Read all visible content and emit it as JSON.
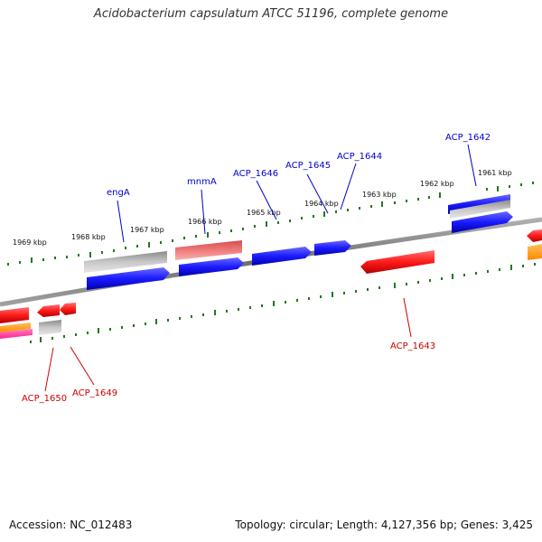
{
  "title": "Acidobacterium capsulatum ATCC 51196, complete genome",
  "footer": {
    "accession": "Accession: NC_012483",
    "summary": "Topology: circular; Length: 4,127,356 bp; Genes: 3,425"
  },
  "colors": {
    "backbone": "#8a8a8a",
    "ticks": "#1f7a1f",
    "label_forward": "#0000cc",
    "label_reverse": "#cc0000",
    "gene_blue": "#1a1aff",
    "gene_red": "#ff1a1a",
    "gene_pink": "#f28080",
    "gene_gray": "#b8b8b8",
    "gene_orange": "#ff9900",
    "gene_magenta": "#ff3399"
  },
  "kbp_labels": [
    "1969 kbp",
    "1968 kbp",
    "1967 kbp",
    "1966 kbp",
    "1965 kbp",
    "1964 kbp",
    "1963 kbp",
    "1962 kbp",
    "1961 kbp"
  ],
  "gene_labels": [
    {
      "name": "engA",
      "strand": "forward"
    },
    {
      "name": "mnmA",
      "strand": "forward"
    },
    {
      "name": "ACP_1646",
      "strand": "forward"
    },
    {
      "name": "ACP_1645",
      "strand": "forward"
    },
    {
      "name": "ACP_1644",
      "strand": "forward"
    },
    {
      "name": "ACP_1642",
      "strand": "forward"
    },
    {
      "name": "ACP_1643",
      "strand": "reverse"
    },
    {
      "name": "ACP_1650",
      "strand": "reverse"
    },
    {
      "name": "ACP_1649",
      "strand": "reverse"
    }
  ]
}
